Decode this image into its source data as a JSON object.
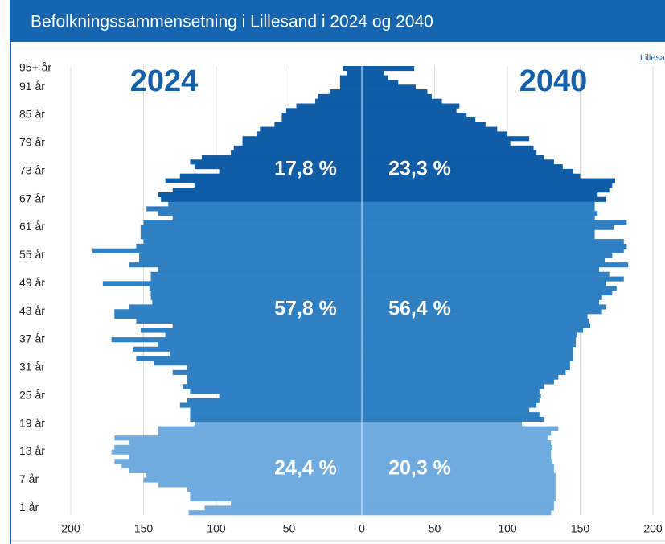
{
  "chart_data": {
    "type": "pyramid",
    "title": "Befolkningssammensetning i Lillesand i 2024 og 2040",
    "corner_text": "Lillesa",
    "categories": [
      null,
      "1 år",
      null,
      null,
      null,
      null,
      null,
      "7 år",
      null,
      null,
      null,
      null,
      null,
      "13 år",
      null,
      null,
      null,
      null,
      null,
      "19 år",
      null,
      null,
      null,
      null,
      null,
      "25 år",
      null,
      null,
      null,
      null,
      null,
      "31 år",
      null,
      null,
      null,
      null,
      null,
      "37 år",
      null,
      null,
      null,
      null,
      null,
      "43 år",
      null,
      null,
      null,
      null,
      null,
      "49 år",
      null,
      null,
      null,
      null,
      null,
      "55 år",
      null,
      null,
      null,
      null,
      null,
      "61 år",
      null,
      null,
      null,
      null,
      null,
      "67 år",
      null,
      null,
      null,
      null,
      null,
      "73 år",
      null,
      null,
      null,
      null,
      null,
      "79 år",
      null,
      null,
      null,
      null,
      null,
      "85 år",
      null,
      null,
      null,
      null,
      null,
      "91 år",
      null,
      null,
      null,
      "95+ år"
    ],
    "category_colors": [
      "#6fabde",
      "#6fabde",
      "#6fabde",
      "#6fabde",
      "#6fabde",
      "#6fabde",
      "#6fabde",
      "#6fabde",
      "#6fabde",
      "#6fabde",
      "#6fabde",
      "#6fabde",
      "#6fabde",
      "#6fabde",
      "#6fabde",
      "#6fabde",
      "#6fabde",
      "#6fabde",
      "#6fabde",
      "#6fabde",
      "#2f80c3",
      "#2f80c3",
      "#2f80c3",
      "#2f80c3",
      "#2f80c3",
      "#2f80c3",
      "#2f80c3",
      "#2f80c3",
      "#2f80c3",
      "#2f80c3",
      "#2f80c3",
      "#2f80c3",
      "#2f80c3",
      "#2f80c3",
      "#2f80c3",
      "#2f80c3",
      "#2f80c3",
      "#2f80c3",
      "#2f80c3",
      "#2f80c3",
      "#2f80c3",
      "#2f80c3",
      "#2f80c3",
      "#2f80c3",
      "#2f80c3",
      "#2f80c3",
      "#2f80c3",
      "#2f80c3",
      "#2f80c3",
      "#2f80c3",
      "#2f80c3",
      "#2f80c3",
      "#2f80c3",
      "#2f80c3",
      "#2f80c3",
      "#2f80c3",
      "#2f80c3",
      "#2f80c3",
      "#2f80c3",
      "#2f80c3",
      "#2f80c3",
      "#2f80c3",
      "#2f80c3",
      "#2f80c3",
      "#2f80c3",
      "#2f80c3",
      "#2f80c3",
      "#0f5ca7",
      "#0f5ca7",
      "#0f5ca7",
      "#0f5ca7",
      "#0f5ca7",
      "#0f5ca7",
      "#0f5ca7",
      "#0f5ca7",
      "#0f5ca7",
      "#0f5ca7",
      "#0f5ca7",
      "#0f5ca7",
      "#0f5ca7",
      "#0f5ca7",
      "#0f5ca7",
      "#0f5ca7",
      "#0f5ca7",
      "#0f5ca7",
      "#0f5ca7",
      "#0f5ca7",
      "#0f5ca7",
      "#0f5ca7",
      "#0f5ca7",
      "#0f5ca7",
      "#0f5ca7",
      "#0f5ca7",
      "#0f5ca7",
      "#0f5ca7",
      "#0f5ca7"
    ],
    "series": [
      {
        "name": "2024",
        "values": [
          -119,
          -108,
          -90,
          -118,
          -118,
          -120,
          -140,
          -150,
          -148,
          -160,
          -165,
          -170,
          -160,
          -172,
          -170,
          -160,
          -170,
          -140,
          -140,
          -115,
          -118,
          -118,
          -118,
          -125,
          -120,
          -98,
          -118,
          -123,
          -120,
          -120,
          -130,
          -120,
          -143,
          -155,
          -132,
          -157,
          -140,
          -172,
          -135,
          -152,
          -130,
          -155,
          -170,
          -170,
          -160,
          -144,
          -145,
          -145,
          -146,
          -178,
          -145,
          -145,
          -140,
          -160,
          -153,
          -153,
          -185,
          -155,
          -150,
          -152,
          -152,
          -152,
          -150,
          -130,
          -140,
          -148,
          -133,
          -138,
          -140,
          -130,
          -115,
          -135,
          -125,
          -98,
          -115,
          -118,
          -110,
          -90,
          -88,
          -82,
          -82,
          -72,
          -70,
          -60,
          -55,
          -55,
          -52,
          -45,
          -32,
          -30,
          -22,
          -15,
          -15,
          -15,
          -10,
          -13
        ]
      },
      {
        "name": "2040",
        "values": [
          130,
          132,
          132,
          133,
          133,
          133,
          133,
          133,
          133,
          132,
          132,
          131,
          130,
          130,
          131,
          130,
          128,
          130,
          135,
          110,
          125,
          122,
          115,
          120,
          122,
          123,
          122,
          125,
          132,
          135,
          140,
          143,
          143,
          145,
          145,
          145,
          147,
          147,
          148,
          152,
          157,
          156,
          155,
          165,
          168,
          163,
          165,
          172,
          175,
          168,
          180,
          170,
          163,
          183,
          167,
          172,
          180,
          182,
          180,
          160,
          160,
          173,
          182,
          160,
          162,
          160,
          160,
          168,
          162,
          170,
          172,
          174,
          150,
          145,
          138,
          132,
          125,
          120,
          118,
          102,
          115,
          100,
          93,
          85,
          78,
          72,
          65,
          67,
          55,
          48,
          45,
          37,
          25,
          18,
          15,
          36
        ]
      }
    ],
    "annotations": [
      "17,8 %",
      "23,3 %",
      "57,8 %",
      "56,4 %",
      "24,4 %",
      "20,3 %"
    ],
    "xlim": [
      -200,
      200
    ],
    "xticks": [
      {
        "value": -200,
        "label": "200"
      },
      {
        "value": -150,
        "label": "150"
      },
      {
        "value": -100,
        "label": "100"
      },
      {
        "value": -50,
        "label": "50"
      },
      0,
      50,
      100,
      150,
      200
    ],
    "grid": true
  }
}
